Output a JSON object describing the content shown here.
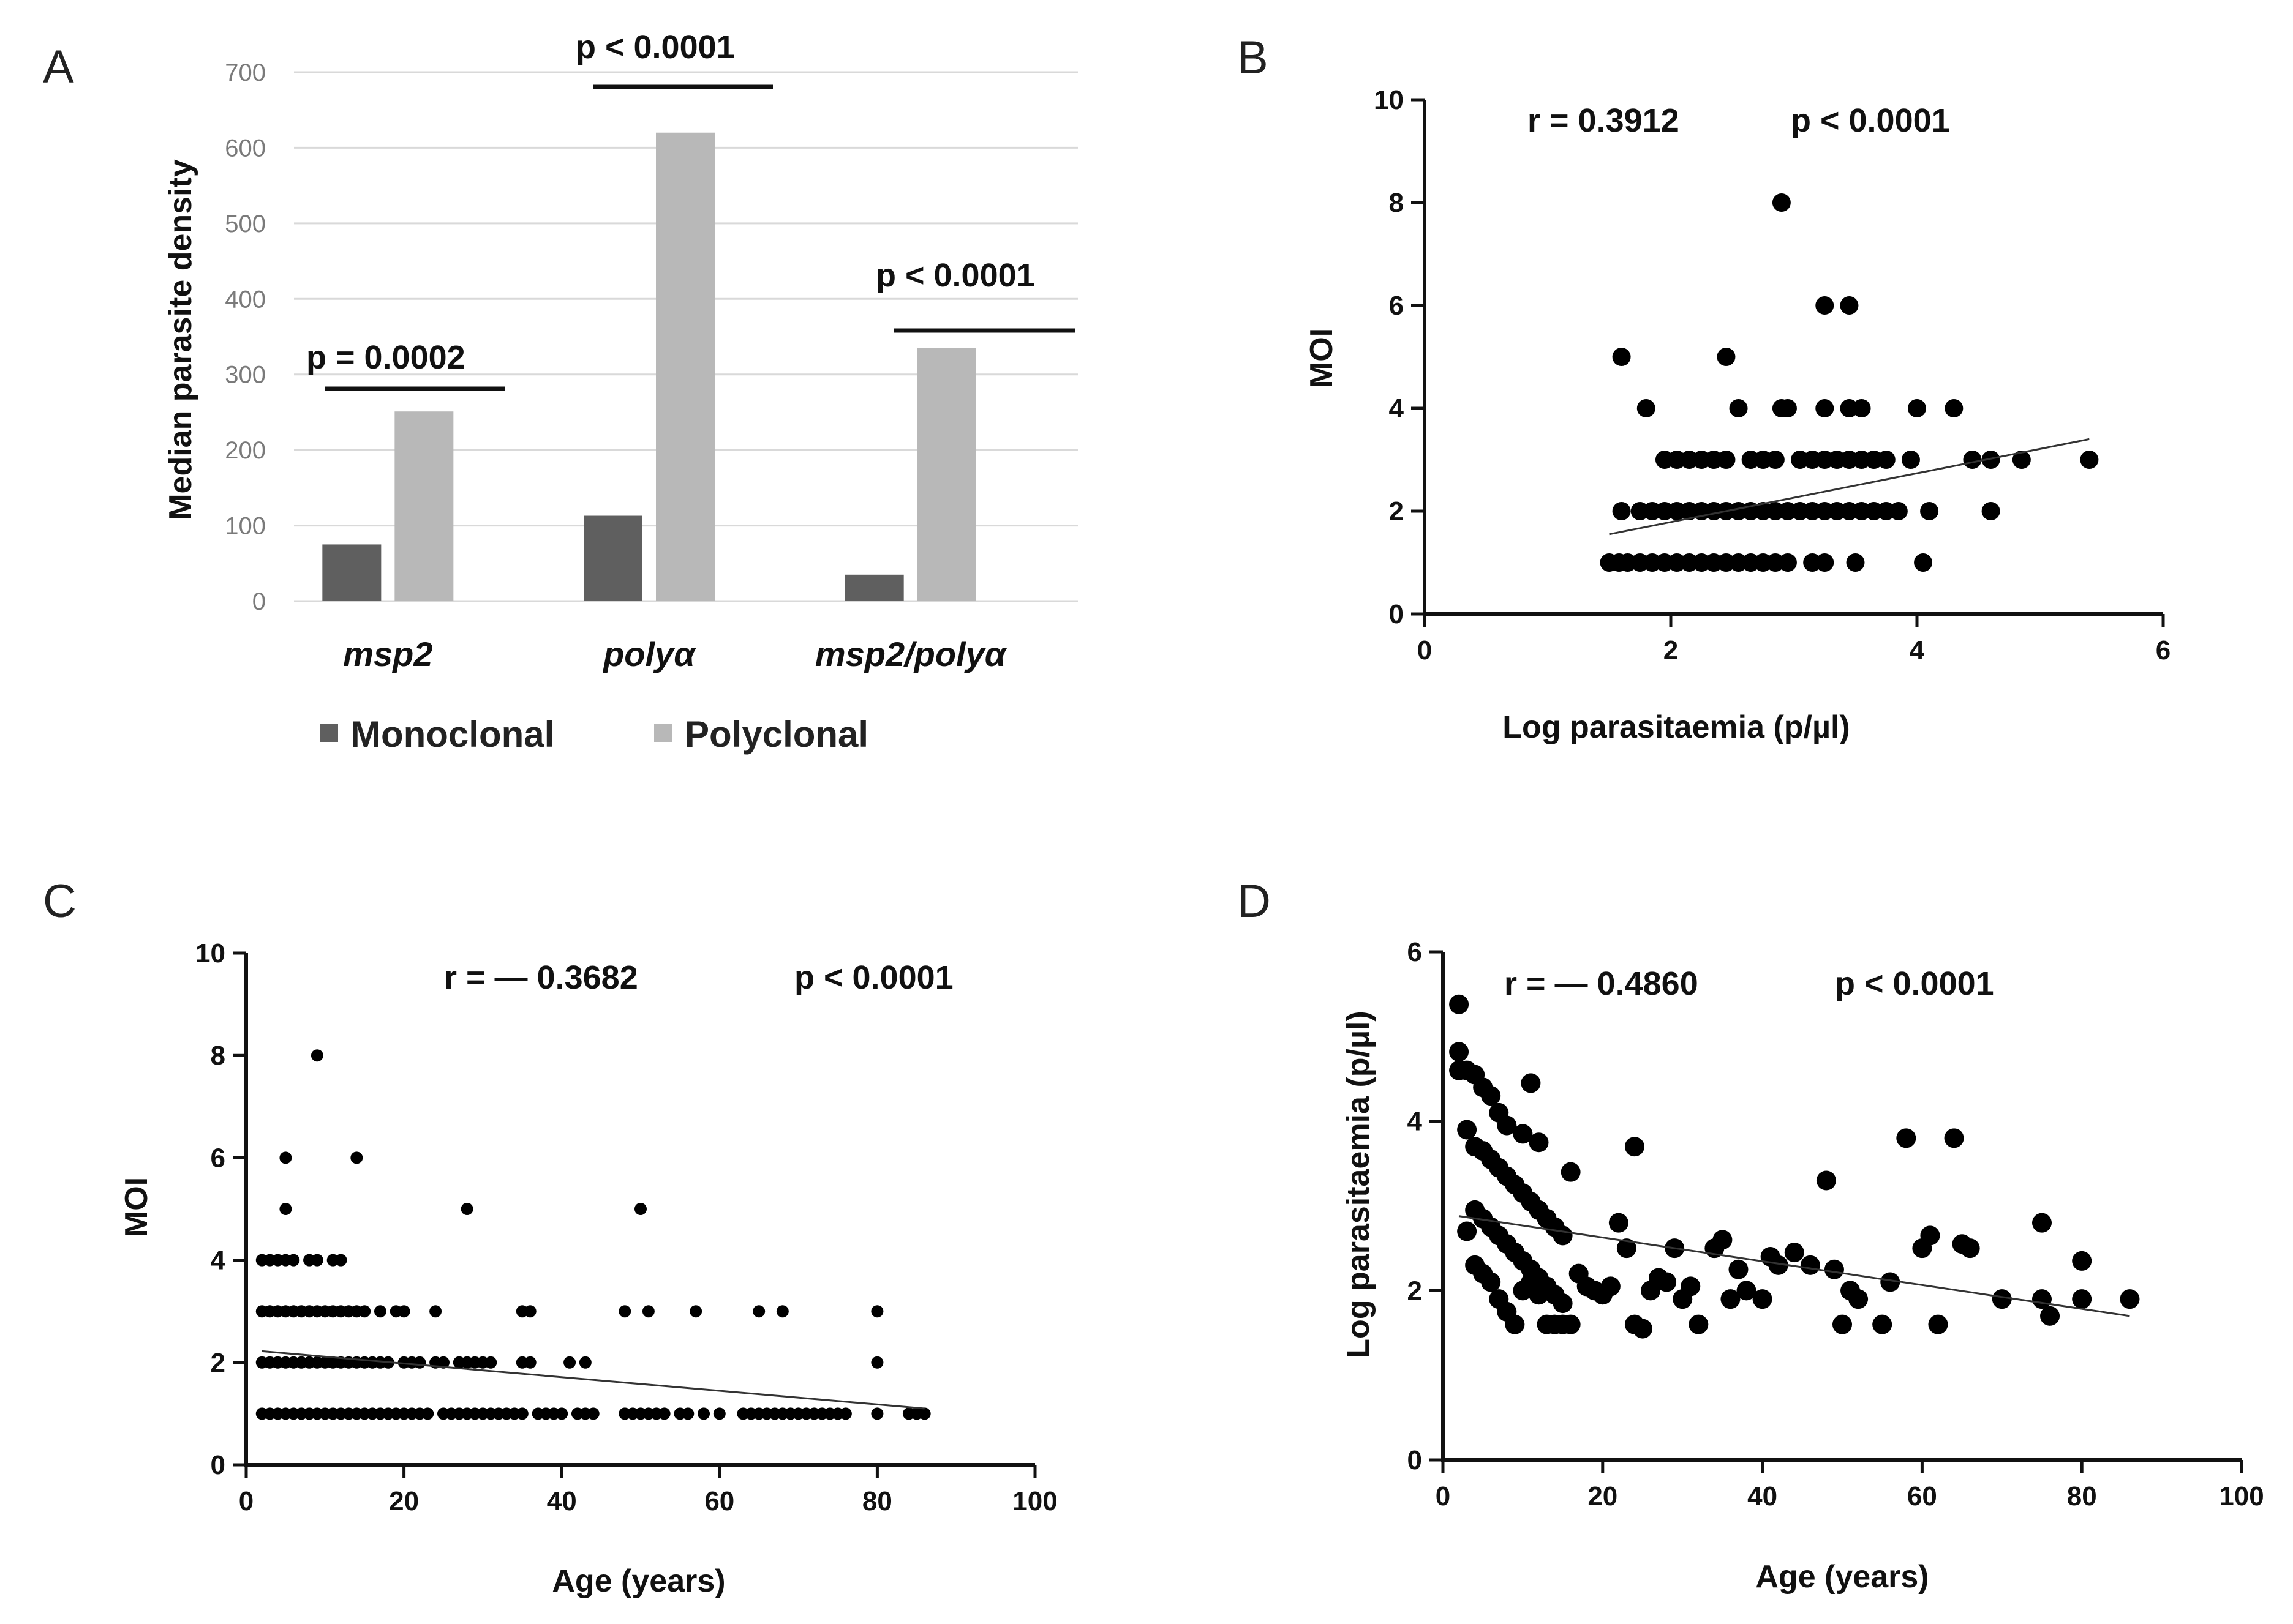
{
  "chart_data": [
    {
      "panel": "A",
      "type": "bar",
      "ylabel": "Median parasite density",
      "ylim": [
        0,
        700
      ],
      "yticks": [
        "0",
        "100",
        "200",
        "300",
        "400",
        "500",
        "600",
        "700"
      ],
      "grid": true,
      "categories": [
        "msp2",
        "polyα",
        "msp2/polyα"
      ],
      "series": [
        {
          "name": "Monoclonal",
          "color": "#5f5f5f",
          "values": [
            75,
            113,
            35
          ]
        },
        {
          "name": "Polyclonal",
          "color": "#b8b8b8",
          "values": [
            251,
            620,
            335
          ]
        }
      ],
      "legend": {
        "position": "bottom",
        "items": [
          "Monoclonal",
          "Polyclonal"
        ]
      },
      "annotations": [
        "p = 0.0002",
        "p < 0.0001",
        "p < 0.0001"
      ]
    },
    {
      "panel": "B",
      "type": "scatter",
      "xlabel": "Log parasitaemia (p/µl)",
      "ylabel": "MOI",
      "xlim": [
        0,
        6
      ],
      "ylim": [
        0,
        10
      ],
      "xticks": [
        "0",
        "2",
        "4",
        "6"
      ],
      "yticks": [
        "0",
        "2",
        "4",
        "6",
        "8",
        "10"
      ],
      "annotations": [
        "r = 0.3912",
        "p < 0.0001"
      ],
      "trendline": {
        "x": [
          1.5,
          5.4
        ],
        "y": [
          1.55,
          3.4
        ]
      },
      "points": [
        [
          1.5,
          1
        ],
        [
          1.58,
          1
        ],
        [
          1.65,
          1
        ],
        [
          1.75,
          1
        ],
        [
          1.85,
          1
        ],
        [
          1.95,
          1
        ],
        [
          2.05,
          1
        ],
        [
          2.15,
          1
        ],
        [
          2.25,
          1
        ],
        [
          2.35,
          1
        ],
        [
          2.45,
          1
        ],
        [
          2.55,
          1
        ],
        [
          2.65,
          1
        ],
        [
          2.75,
          1
        ],
        [
          2.85,
          1
        ],
        [
          2.95,
          1
        ],
        [
          3.15,
          1
        ],
        [
          3.25,
          1
        ],
        [
          3.5,
          1
        ],
        [
          4.05,
          1
        ],
        [
          1.6,
          2
        ],
        [
          1.75,
          2
        ],
        [
          1.85,
          2
        ],
        [
          1.95,
          2
        ],
        [
          2.05,
          2
        ],
        [
          2.15,
          2
        ],
        [
          2.25,
          2
        ],
        [
          2.35,
          2
        ],
        [
          2.45,
          2
        ],
        [
          2.55,
          2
        ],
        [
          2.65,
          2
        ],
        [
          2.75,
          2
        ],
        [
          2.85,
          2
        ],
        [
          2.95,
          2
        ],
        [
          3.05,
          2
        ],
        [
          3.15,
          2
        ],
        [
          3.25,
          2
        ],
        [
          3.35,
          2
        ],
        [
          3.45,
          2
        ],
        [
          3.55,
          2
        ],
        [
          3.65,
          2
        ],
        [
          3.75,
          2
        ],
        [
          3.85,
          2
        ],
        [
          4.1,
          2
        ],
        [
          4.6,
          2
        ],
        [
          1.95,
          3
        ],
        [
          2.05,
          3
        ],
        [
          2.15,
          3
        ],
        [
          2.25,
          3
        ],
        [
          2.35,
          3
        ],
        [
          2.45,
          3
        ],
        [
          2.65,
          3
        ],
        [
          2.75,
          3
        ],
        [
          2.85,
          3
        ],
        [
          3.05,
          3
        ],
        [
          3.15,
          3
        ],
        [
          3.25,
          3
        ],
        [
          3.35,
          3
        ],
        [
          3.45,
          3
        ],
        [
          3.55,
          3
        ],
        [
          3.65,
          3
        ],
        [
          3.75,
          3
        ],
        [
          3.95,
          3
        ],
        [
          4.45,
          3
        ],
        [
          4.6,
          3
        ],
        [
          4.85,
          3
        ],
        [
          5.4,
          3
        ],
        [
          1.8,
          4
        ],
        [
          2.55,
          4
        ],
        [
          2.9,
          4
        ],
        [
          2.95,
          4
        ],
        [
          3.25,
          4
        ],
        [
          3.45,
          4
        ],
        [
          3.55,
          4
        ],
        [
          4.0,
          4
        ],
        [
          4.3,
          4
        ],
        [
          1.6,
          5
        ],
        [
          2.45,
          5
        ],
        [
          3.25,
          6
        ],
        [
          3.45,
          6
        ],
        [
          2.9,
          8
        ]
      ]
    },
    {
      "panel": "C",
      "type": "scatter",
      "xlabel": "Age (years)",
      "ylabel": "MOI",
      "xlim": [
        0,
        100
      ],
      "ylim": [
        0,
        10
      ],
      "xticks": [
        "0",
        "20",
        "40",
        "60",
        "80",
        "100"
      ],
      "yticks": [
        "0",
        "2",
        "4",
        "6",
        "8",
        "10"
      ],
      "annotations": [
        "r = — 0.3682",
        "p < 0.0001"
      ],
      "trendline": {
        "x": [
          2,
          86
        ],
        "y": [
          2.22,
          1.1
        ]
      },
      "points": [
        [
          2,
          1
        ],
        [
          3,
          1
        ],
        [
          4,
          1
        ],
        [
          5,
          1
        ],
        [
          6,
          1
        ],
        [
          7,
          1
        ],
        [
          8,
          1
        ],
        [
          9,
          1
        ],
        [
          10,
          1
        ],
        [
          11,
          1
        ],
        [
          12,
          1
        ],
        [
          13,
          1
        ],
        [
          14,
          1
        ],
        [
          15,
          1
        ],
        [
          16,
          1
        ],
        [
          17,
          1
        ],
        [
          18,
          1
        ],
        [
          19,
          1
        ],
        [
          20,
          1
        ],
        [
          21,
          1
        ],
        [
          22,
          1
        ],
        [
          23,
          1
        ],
        [
          25,
          1
        ],
        [
          26,
          1
        ],
        [
          27,
          1
        ],
        [
          28,
          1
        ],
        [
          29,
          1
        ],
        [
          30,
          1
        ],
        [
          31,
          1
        ],
        [
          32,
          1
        ],
        [
          33,
          1
        ],
        [
          34,
          1
        ],
        [
          35,
          1
        ],
        [
          37,
          1
        ],
        [
          38,
          1
        ],
        [
          39,
          1
        ],
        [
          40,
          1
        ],
        [
          42,
          1
        ],
        [
          43,
          1
        ],
        [
          44,
          1
        ],
        [
          48,
          1
        ],
        [
          49,
          1
        ],
        [
          50,
          1
        ],
        [
          51,
          1
        ],
        [
          52,
          1
        ],
        [
          53,
          1
        ],
        [
          55,
          1
        ],
        [
          56,
          1
        ],
        [
          58,
          1
        ],
        [
          60,
          1
        ],
        [
          63,
          1
        ],
        [
          64,
          1
        ],
        [
          65,
          1
        ],
        [
          66,
          1
        ],
        [
          67,
          1
        ],
        [
          68,
          1
        ],
        [
          69,
          1
        ],
        [
          70,
          1
        ],
        [
          71,
          1
        ],
        [
          72,
          1
        ],
        [
          73,
          1
        ],
        [
          74,
          1
        ],
        [
          75,
          1
        ],
        [
          76,
          1
        ],
        [
          80,
          1
        ],
        [
          84,
          1
        ],
        [
          85,
          1
        ],
        [
          86,
          1
        ],
        [
          2,
          2
        ],
        [
          3,
          2
        ],
        [
          4,
          2
        ],
        [
          5,
          2
        ],
        [
          6,
          2
        ],
        [
          7,
          2
        ],
        [
          8,
          2
        ],
        [
          9,
          2
        ],
        [
          10,
          2
        ],
        [
          11,
          2
        ],
        [
          12,
          2
        ],
        [
          13,
          2
        ],
        [
          14,
          2
        ],
        [
          15,
          2
        ],
        [
          16,
          2
        ],
        [
          17,
          2
        ],
        [
          18,
          2
        ],
        [
          20,
          2
        ],
        [
          21,
          2
        ],
        [
          22,
          2
        ],
        [
          24,
          2
        ],
        [
          25,
          2
        ],
        [
          27,
          2
        ],
        [
          28,
          2
        ],
        [
          29,
          2
        ],
        [
          30,
          2
        ],
        [
          31,
          2
        ],
        [
          35,
          2
        ],
        [
          36,
          2
        ],
        [
          41,
          2
        ],
        [
          43,
          2
        ],
        [
          80,
          2
        ],
        [
          2,
          3
        ],
        [
          3,
          3
        ],
        [
          4,
          3
        ],
        [
          5,
          3
        ],
        [
          6,
          3
        ],
        [
          7,
          3
        ],
        [
          8,
          3
        ],
        [
          9,
          3
        ],
        [
          10,
          3
        ],
        [
          11,
          3
        ],
        [
          12,
          3
        ],
        [
          13,
          3
        ],
        [
          14,
          3
        ],
        [
          15,
          3
        ],
        [
          17,
          3
        ],
        [
          19,
          3
        ],
        [
          20,
          3
        ],
        [
          24,
          3
        ],
        [
          35,
          3
        ],
        [
          36,
          3
        ],
        [
          48,
          3
        ],
        [
          51,
          3
        ],
        [
          57,
          3
        ],
        [
          65,
          3
        ],
        [
          68,
          3
        ],
        [
          80,
          3
        ],
        [
          2,
          4
        ],
        [
          3,
          4
        ],
        [
          4,
          4
        ],
        [
          5,
          4
        ],
        [
          6,
          4
        ],
        [
          8,
          4
        ],
        [
          9,
          4
        ],
        [
          11,
          4
        ],
        [
          12,
          4
        ],
        [
          5,
          5
        ],
        [
          28,
          5
        ],
        [
          50,
          5
        ],
        [
          5,
          6
        ],
        [
          14,
          6
        ],
        [
          9,
          8
        ]
      ]
    },
    {
      "panel": "D",
      "type": "scatter",
      "xlabel": "Age (years)",
      "ylabel": "Log parasitaemia (p/µl)",
      "xlim": [
        0,
        100
      ],
      "ylim": [
        0,
        6
      ],
      "xticks": [
        "0",
        "20",
        "40",
        "60",
        "80",
        "100"
      ],
      "yticks": [
        "0",
        "2",
        "4",
        "6"
      ],
      "annotations": [
        "r = — 0.4860",
        "p < 0.0001"
      ],
      "trendline": {
        "x": [
          2,
          86
        ],
        "y": [
          2.88,
          1.7
        ]
      },
      "points": [
        [
          2,
          5.38
        ],
        [
          2,
          4.82
        ],
        [
          2,
          4.6
        ],
        [
          3,
          4.6
        ],
        [
          4,
          4.55
        ],
        [
          5,
          4.4
        ],
        [
          6,
          4.3
        ],
        [
          7,
          4.1
        ],
        [
          8,
          3.95
        ],
        [
          10,
          3.85
        ],
        [
          12,
          3.75
        ],
        [
          11,
          4.45
        ],
        [
          3,
          3.9
        ],
        [
          4,
          3.7
        ],
        [
          5,
          3.65
        ],
        [
          6,
          3.55
        ],
        [
          7,
          3.45
        ],
        [
          8,
          3.35
        ],
        [
          9,
          3.25
        ],
        [
          10,
          3.15
        ],
        [
          11,
          3.05
        ],
        [
          12,
          2.95
        ],
        [
          13,
          2.85
        ],
        [
          14,
          2.75
        ],
        [
          15,
          2.65
        ],
        [
          16,
          3.4
        ],
        [
          3,
          2.7
        ],
        [
          4,
          2.95
        ],
        [
          5,
          2.85
        ],
        [
          6,
          2.75
        ],
        [
          7,
          2.65
        ],
        [
          8,
          2.55
        ],
        [
          9,
          2.45
        ],
        [
          10,
          2.35
        ],
        [
          11,
          2.25
        ],
        [
          12,
          2.15
        ],
        [
          13,
          2.05
        ],
        [
          14,
          1.95
        ],
        [
          15,
          1.85
        ],
        [
          4,
          2.3
        ],
        [
          5,
          2.2
        ],
        [
          6,
          2.1
        ],
        [
          7,
          1.9
        ],
        [
          8,
          1.75
        ],
        [
          9,
          1.6
        ],
        [
          10,
          2.0
        ],
        [
          11,
          2.1
        ],
        [
          12,
          1.95
        ],
        [
          13,
          1.6
        ],
        [
          14,
          1.6
        ],
        [
          15,
          1.6
        ],
        [
          16,
          1.6
        ],
        [
          17,
          2.2
        ],
        [
          18,
          2.05
        ],
        [
          19,
          2.0
        ],
        [
          20,
          1.95
        ],
        [
          21,
          2.05
        ],
        [
          22,
          2.8
        ],
        [
          23,
          2.5
        ],
        [
          24,
          3.7
        ],
        [
          24,
          1.6
        ],
        [
          25,
          1.55
        ],
        [
          26,
          2.0
        ],
        [
          27,
          2.15
        ],
        [
          28,
          2.1
        ],
        [
          29,
          2.5
        ],
        [
          30,
          1.9
        ],
        [
          31,
          2.05
        ],
        [
          32,
          1.6
        ],
        [
          34,
          2.5
        ],
        [
          35,
          2.6
        ],
        [
          36,
          1.9
        ],
        [
          37,
          2.25
        ],
        [
          38,
          2.0
        ],
        [
          40,
          1.9
        ],
        [
          41,
          2.4
        ],
        [
          42,
          2.3
        ],
        [
          44,
          2.45
        ],
        [
          46,
          2.3
        ],
        [
          48,
          3.3
        ],
        [
          49,
          2.25
        ],
        [
          50,
          1.6
        ],
        [
          51,
          2.0
        ],
        [
          52,
          1.9
        ],
        [
          55,
          1.6
        ],
        [
          56,
          2.1
        ],
        [
          58,
          3.8
        ],
        [
          60,
          2.5
        ],
        [
          61,
          2.65
        ],
        [
          62,
          1.6
        ],
        [
          64,
          3.8
        ],
        [
          65,
          2.55
        ],
        [
          66,
          2.5
        ],
        [
          70,
          1.9
        ],
        [
          75,
          2.8
        ],
        [
          75,
          1.9
        ],
        [
          76,
          1.7
        ],
        [
          80,
          2.35
        ],
        [
          80,
          1.9
        ],
        [
          86,
          1.9
        ]
      ]
    }
  ]
}
